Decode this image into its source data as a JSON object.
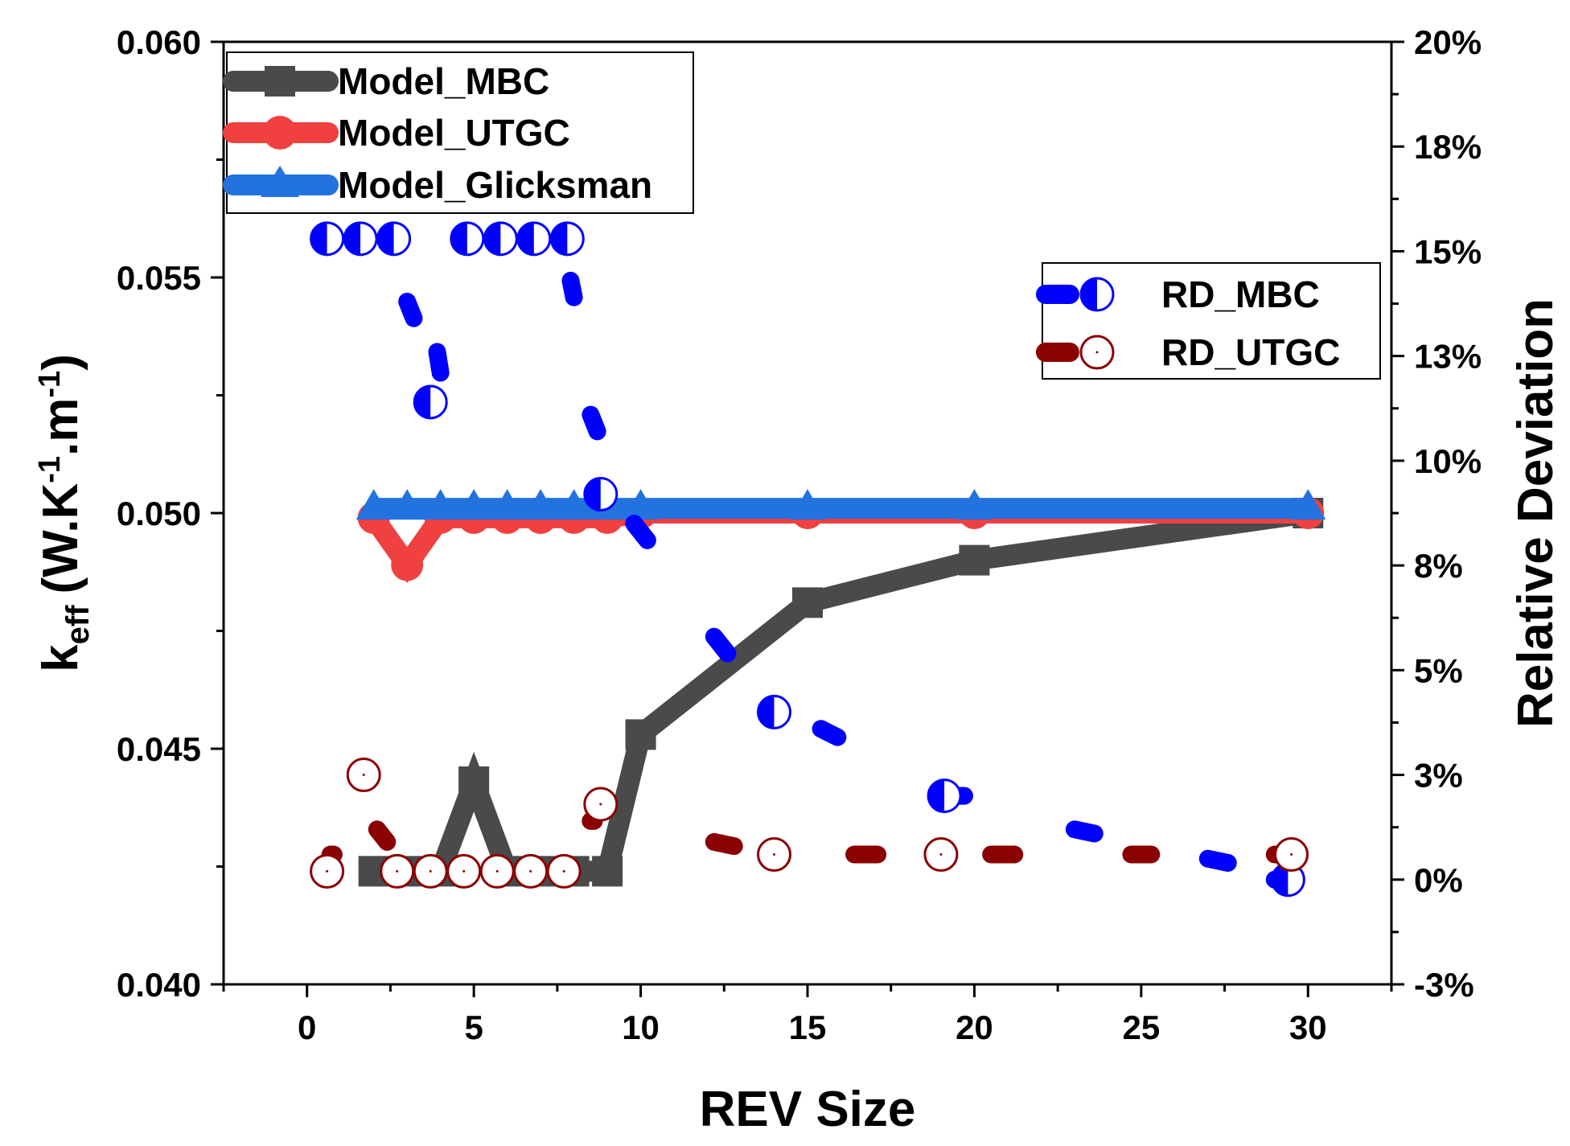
{
  "chart_data": {
    "type": "line",
    "xlabel": "REV Size",
    "ylabel": "k",
    "ylabel_sub": "eff",
    "ylabel_units_parts": [
      "(W.K",
      "-1",
      ".m",
      "-1",
      ")"
    ],
    "y2label": "Relative Deviation",
    "xlim": [
      -2.5,
      32.5
    ],
    "ylim": [
      0.04,
      0.06
    ],
    "y2lim": [
      -0.025,
      0.2
    ],
    "x_ticks": [
      0,
      5,
      10,
      15,
      20,
      25,
      30
    ],
    "x_tick_labels": [
      "0",
      "5",
      "10",
      "15",
      "20",
      "25",
      "30"
    ],
    "y_ticks": [
      0.04,
      0.045,
      0.05,
      0.055,
      0.06
    ],
    "y_tick_labels": [
      "0.040",
      "0.045",
      "0.050",
      "0.055",
      "0.060"
    ],
    "y2_ticks": [
      -0.025,
      0,
      0.025,
      0.05,
      0.075,
      0.1,
      0.125,
      0.15,
      0.175,
      0.2
    ],
    "y2_tick_labels": [
      "-3%",
      "0%",
      "3%",
      "5%",
      "8%",
      "10%",
      "13%",
      "15%",
      "18%",
      "20%"
    ],
    "legend_main": [
      "Model_MBC",
      "Model_UTGC",
      "Model_Glicksman"
    ],
    "legend_rd": [
      "RD_MBC",
      "RD_UTGC"
    ],
    "series": [
      {
        "name": "Model_MBC",
        "color": "#4a4a4a",
        "marker": "square",
        "axis": "left",
        "x": [
          2,
          3,
          4,
          5,
          6,
          7,
          8,
          9,
          10,
          15,
          20,
          30
        ],
        "y": [
          0.0424,
          0.0424,
          0.0424,
          0.0443,
          0.0424,
          0.0424,
          0.0424,
          0.0424,
          0.0453,
          0.0481,
          0.049,
          0.05
        ]
      },
      {
        "name": "Model_UTGC",
        "color": "#f04040",
        "marker": "circle",
        "axis": "left",
        "x": [
          2,
          3,
          4,
          5,
          6,
          7,
          8,
          9,
          10,
          15,
          20,
          30
        ],
        "y": [
          0.0499,
          0.0489,
          0.0499,
          0.0499,
          0.0499,
          0.0499,
          0.0499,
          0.0499,
          0.05,
          0.05,
          0.05,
          0.05
        ]
      },
      {
        "name": "Model_Glicksman",
        "color": "#2272e0",
        "marker": "triangle",
        "axis": "left",
        "x": [
          2,
          3,
          4,
          5,
          6,
          7,
          8,
          9,
          10,
          15,
          20,
          30
        ],
        "y": [
          0.0501,
          0.0501,
          0.0501,
          0.0501,
          0.0501,
          0.0501,
          0.0501,
          0.0501,
          0.0501,
          0.0501,
          0.0501,
          0.0501
        ]
      },
      {
        "name": "RD_MBC",
        "color": "#0000ff",
        "marker": "half-circle",
        "axis": "right",
        "x": [
          0.6,
          1.6,
          2.6,
          4.8,
          5.8,
          6.8,
          7.8,
          3.7,
          8.8,
          14.0,
          19.1,
          29.4
        ],
        "y": [
          0.153,
          0.153,
          0.153,
          0.153,
          0.153,
          0.153,
          0.153,
          0.114,
          0.092,
          0.04,
          0.02,
          0.0
        ],
        "dashes": [
          {
            "x0": 3.0,
            "y0": 0.138,
            "x1": 3.2,
            "y1": 0.134
          },
          {
            "x0": 3.9,
            "y0": 0.126,
            "x1": 4.0,
            "y1": 0.121
          },
          {
            "x0": 7.9,
            "y0": 0.143,
            "x1": 8.0,
            "y1": 0.139
          },
          {
            "x0": 8.5,
            "y0": 0.111,
            "x1": 8.7,
            "y1": 0.107
          },
          {
            "x0": 9.8,
            "y0": 0.085,
            "x1": 10.2,
            "y1": 0.081
          },
          {
            "x0": 12.2,
            "y0": 0.058,
            "x1": 12.6,
            "y1": 0.054
          },
          {
            "x0": 15.4,
            "y0": 0.036,
            "x1": 15.9,
            "y1": 0.034
          },
          {
            "x0": 19.3,
            "y0": 0.02,
            "x1": 19.7,
            "y1": 0.02
          },
          {
            "x0": 23.0,
            "y0": 0.012,
            "x1": 23.6,
            "y1": 0.011
          },
          {
            "x0": 27.0,
            "y0": 0.005,
            "x1": 27.6,
            "y1": 0.004
          },
          {
            "x0": 29.0,
            "y0": 0.0,
            "x1": 29.4,
            "y1": 0.0
          }
        ]
      },
      {
        "name": "RD_UTGC",
        "color": "#8b0000",
        "marker": "open-circle",
        "axis": "right",
        "x": [
          0.6,
          1.7,
          2.7,
          3.7,
          4.7,
          5.7,
          6.7,
          7.7,
          8.8,
          14.0,
          19.0,
          29.5
        ],
        "y": [
          0.002,
          0.025,
          0.002,
          0.002,
          0.002,
          0.002,
          0.002,
          0.002,
          0.018,
          0.006,
          0.006,
          0.006
        ],
        "dashes": [
          {
            "x0": 0.7,
            "y0": 0.006,
            "x1": 0.8,
            "y1": 0.006
          },
          {
            "x0": 2.1,
            "y0": 0.012,
            "x1": 2.4,
            "y1": 0.009
          },
          {
            "x0": 8.5,
            "y0": 0.014,
            "x1": 8.6,
            "y1": 0.014
          },
          {
            "x0": 12.2,
            "y0": 0.009,
            "x1": 12.8,
            "y1": 0.008
          },
          {
            "x0": 16.4,
            "y0": 0.006,
            "x1": 17.1,
            "y1": 0.006
          },
          {
            "x0": 20.5,
            "y0": 0.006,
            "x1": 21.2,
            "y1": 0.006
          },
          {
            "x0": 24.7,
            "y0": 0.006,
            "x1": 25.3,
            "y1": 0.006
          },
          {
            "x0": 29.0,
            "y0": 0.006,
            "x1": 29.1,
            "y1": 0.006
          }
        ]
      }
    ]
  }
}
